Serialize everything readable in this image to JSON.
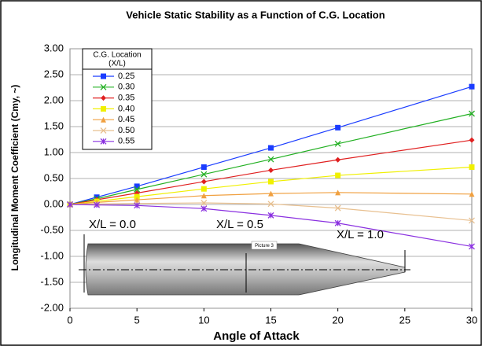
{
  "chart_data": {
    "type": "line",
    "title": "Vehicle Static Stability as a Function of C.G. Location",
    "x_label": "Angle of Attack",
    "y_label": "Longitudinal Moment Coefficient (Cmy, ~)",
    "x": [
      0,
      2,
      5,
      10,
      15,
      20,
      30
    ],
    "xlim": [
      0,
      30
    ],
    "xticks": [
      0,
      5,
      10,
      15,
      20,
      25,
      30
    ],
    "ylim": [
      -2,
      3
    ],
    "yticks": [
      {
        "value": -2,
        "label": "-2.00"
      },
      {
        "value": -1.5,
        "label": "-1.50"
      },
      {
        "value": -1,
        "label": "-1.00"
      },
      {
        "value": -0.5,
        "label": "-0.50"
      },
      {
        "value": 0,
        "label": "0.00"
      },
      {
        "value": 0.5,
        "label": "0.50"
      },
      {
        "value": 1,
        "label": "1.00"
      },
      {
        "value": 1.5,
        "label": "1.50"
      },
      {
        "value": 2,
        "label": "2.00"
      },
      {
        "value": 2.5,
        "label": "2.50"
      },
      {
        "value": 3,
        "label": "3.00"
      }
    ],
    "grid": true,
    "legend_title": [
      "C.G. Location",
      "(X/L)"
    ],
    "series": [
      {
        "name": "0.25",
        "color": "#1a3cff",
        "marker": "square",
        "values": [
          0,
          0.14,
          0.35,
          0.72,
          1.09,
          1.48,
          2.27
        ]
      },
      {
        "name": "0.30",
        "color": "#22b022",
        "marker": "x",
        "values": [
          0,
          0.11,
          0.29,
          0.58,
          0.87,
          1.17,
          1.75
        ]
      },
      {
        "name": "0.35",
        "color": "#e02020",
        "marker": "diamond",
        "values": [
          0,
          0.09,
          0.22,
          0.44,
          0.66,
          0.86,
          1.24
        ]
      },
      {
        "name": "0.40",
        "color": "#f0f000",
        "marker": "square",
        "values": [
          0,
          0.06,
          0.15,
          0.3,
          0.44,
          0.56,
          0.72
        ]
      },
      {
        "name": "0.45",
        "color": "#f0a040",
        "marker": "triangle",
        "values": [
          0,
          0.04,
          0.09,
          0.17,
          0.21,
          0.23,
          0.2
        ]
      },
      {
        "name": "0.50",
        "color": "#e8c090",
        "marker": "x",
        "values": [
          0,
          0.01,
          0.02,
          0.03,
          0.01,
          -0.07,
          -0.31
        ]
      },
      {
        "name": "0.55",
        "color": "#8a30e0",
        "marker": "star",
        "values": [
          0,
          -0.01,
          -0.02,
          -0.08,
          -0.21,
          -0.36,
          -0.81
        ]
      }
    ],
    "annotations": [
      "X/L = 0.0",
      "X/L = 0.5",
      "X/L = 1.0",
      "Picture 3"
    ]
  }
}
